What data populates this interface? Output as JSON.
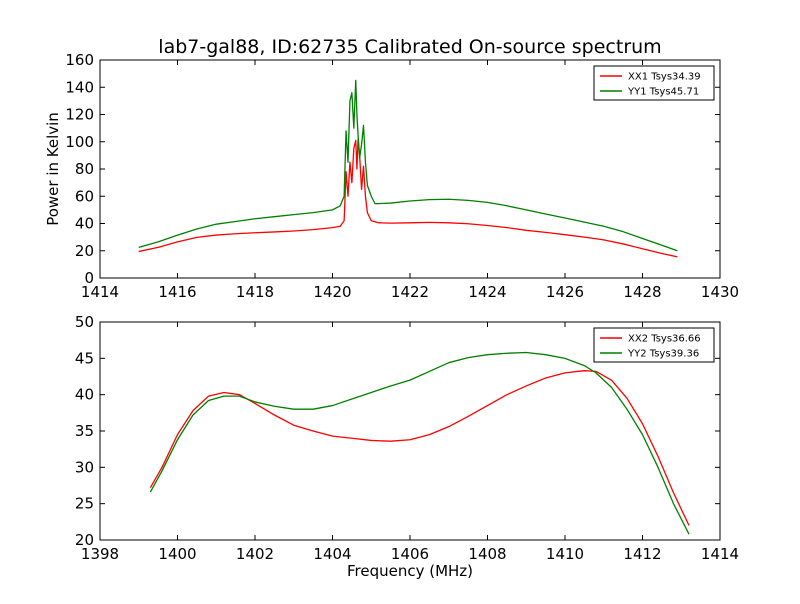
{
  "figure": {
    "title": "lab7-gal88, ID:62735 Calibrated On-source spectrum",
    "xlabel": "Frequency (MHz)",
    "ylabel": "Power in Kelvin"
  },
  "colors": {
    "xx": "#ff0000",
    "yy": "#008000"
  },
  "chart_data": [
    {
      "type": "line",
      "title": "lab7-gal88, ID:62735 Calibrated On-source spectrum",
      "xlabel": "",
      "ylabel": "Power in Kelvin",
      "xlim": [
        1414,
        1430
      ],
      "ylim": [
        0,
        160
      ],
      "xticks": [
        1414,
        1416,
        1418,
        1420,
        1422,
        1424,
        1426,
        1428,
        1430
      ],
      "yticks": [
        0,
        20,
        40,
        60,
        80,
        100,
        120,
        140,
        160
      ],
      "grid": false,
      "legend_position": "top-right",
      "series": [
        {
          "name": "XX1 Tsys34.39",
          "color": "#ff0000",
          "points": [
            [
              1415.0,
              19.5
            ],
            [
              1415.5,
              22.5
            ],
            [
              1416.0,
              26.5
            ],
            [
              1416.5,
              29.8
            ],
            [
              1417.0,
              31.5
            ],
            [
              1417.5,
              32.5
            ],
            [
              1418.0,
              33.2
            ],
            [
              1418.5,
              33.8
            ],
            [
              1419.0,
              34.5
            ],
            [
              1419.5,
              35.5
            ],
            [
              1420.0,
              37.0
            ],
            [
              1420.2,
              38.0
            ],
            [
              1420.3,
              42.0
            ],
            [
              1420.35,
              78.0
            ],
            [
              1420.4,
              60.0
            ],
            [
              1420.45,
              85.0
            ],
            [
              1420.5,
              70.0
            ],
            [
              1420.55,
              95.0
            ],
            [
              1420.6,
              101.0
            ],
            [
              1420.63,
              80.0
            ],
            [
              1420.66,
              102.0
            ],
            [
              1420.7,
              90.0
            ],
            [
              1420.75,
              65.0
            ],
            [
              1420.8,
              82.0
            ],
            [
              1420.85,
              60.0
            ],
            [
              1420.9,
              48.0
            ],
            [
              1421.0,
              42.0
            ],
            [
              1421.2,
              40.5
            ],
            [
              1421.5,
              40.3
            ],
            [
              1422.0,
              40.5
            ],
            [
              1422.5,
              40.8
            ],
            [
              1423.0,
              40.5
            ],
            [
              1423.5,
              39.8
            ],
            [
              1424.0,
              38.5
            ],
            [
              1424.5,
              37.0
            ],
            [
              1425.0,
              35.0
            ],
            [
              1425.5,
              33.5
            ],
            [
              1426.0,
              31.8
            ],
            [
              1426.5,
              30.0
            ],
            [
              1427.0,
              28.0
            ],
            [
              1427.5,
              25.0
            ],
            [
              1428.0,
              21.5
            ],
            [
              1428.5,
              18.0
            ],
            [
              1428.9,
              15.5
            ]
          ]
        },
        {
          "name": "YY1 Tsys45.71",
          "color": "#008000",
          "points": [
            [
              1415.0,
              22.5
            ],
            [
              1415.5,
              26.5
            ],
            [
              1416.0,
              31.5
            ],
            [
              1416.5,
              36.0
            ],
            [
              1417.0,
              39.5
            ],
            [
              1417.5,
              41.5
            ],
            [
              1418.0,
              43.5
            ],
            [
              1418.5,
              45.0
            ],
            [
              1419.0,
              46.5
            ],
            [
              1419.5,
              48.0
            ],
            [
              1420.0,
              50.0
            ],
            [
              1420.2,
              53.0
            ],
            [
              1420.3,
              60.0
            ],
            [
              1420.35,
              108.0
            ],
            [
              1420.4,
              85.0
            ],
            [
              1420.45,
              130.0
            ],
            [
              1420.5,
              136.0
            ],
            [
              1420.55,
              110.0
            ],
            [
              1420.6,
              145.0
            ],
            [
              1420.63,
              120.0
            ],
            [
              1420.66,
              105.0
            ],
            [
              1420.7,
              88.0
            ],
            [
              1420.75,
              98.0
            ],
            [
              1420.8,
              112.0
            ],
            [
              1420.85,
              85.0
            ],
            [
              1420.9,
              68.0
            ],
            [
              1421.0,
              60.0
            ],
            [
              1421.1,
              54.5
            ],
            [
              1421.5,
              55.0
            ],
            [
              1422.0,
              56.5
            ],
            [
              1422.5,
              57.5
            ],
            [
              1423.0,
              57.8
            ],
            [
              1423.5,
              57.0
            ],
            [
              1424.0,
              55.5
            ],
            [
              1424.5,
              53.0
            ],
            [
              1425.0,
              50.0
            ],
            [
              1425.5,
              47.0
            ],
            [
              1426.0,
              44.0
            ],
            [
              1426.5,
              41.0
            ],
            [
              1427.0,
              38.0
            ],
            [
              1427.5,
              34.0
            ],
            [
              1428.0,
              29.0
            ],
            [
              1428.5,
              24.0
            ],
            [
              1428.9,
              20.0
            ]
          ]
        }
      ]
    },
    {
      "type": "line",
      "title": "",
      "xlabel": "Frequency (MHz)",
      "ylabel": "",
      "xlim": [
        1398,
        1414
      ],
      "ylim": [
        20,
        50
      ],
      "xticks": [
        1398,
        1400,
        1402,
        1404,
        1406,
        1408,
        1410,
        1412,
        1414
      ],
      "yticks": [
        20,
        25,
        30,
        35,
        40,
        45,
        50
      ],
      "grid": false,
      "legend_position": "top-right",
      "series": [
        {
          "name": "XX2 Tsys36.66",
          "color": "#ff0000",
          "points": [
            [
              1399.3,
              27.2
            ],
            [
              1399.6,
              30.0
            ],
            [
              1400.0,
              34.5
            ],
            [
              1400.4,
              37.8
            ],
            [
              1400.8,
              39.8
            ],
            [
              1401.2,
              40.3
            ],
            [
              1401.6,
              40.0
            ],
            [
              1402.0,
              38.8
            ],
            [
              1402.5,
              37.2
            ],
            [
              1403.0,
              35.8
            ],
            [
              1403.5,
              35.0
            ],
            [
              1404.0,
              34.3
            ],
            [
              1404.5,
              34.0
            ],
            [
              1405.0,
              33.7
            ],
            [
              1405.5,
              33.6
            ],
            [
              1406.0,
              33.8
            ],
            [
              1406.5,
              34.5
            ],
            [
              1407.0,
              35.6
            ],
            [
              1407.5,
              37.0
            ],
            [
              1408.0,
              38.5
            ],
            [
              1408.5,
              40.0
            ],
            [
              1409.0,
              41.2
            ],
            [
              1409.5,
              42.3
            ],
            [
              1410.0,
              43.0
            ],
            [
              1410.5,
              43.3
            ],
            [
              1410.8,
              43.2
            ],
            [
              1411.2,
              42.0
            ],
            [
              1411.6,
              39.5
            ],
            [
              1412.0,
              36.0
            ],
            [
              1412.4,
              31.5
            ],
            [
              1412.8,
              26.5
            ],
            [
              1413.2,
              22.0
            ]
          ]
        },
        {
          "name": "YY2 Tsys39.36",
          "color": "#008000",
          "points": [
            [
              1399.3,
              26.6
            ],
            [
              1399.6,
              29.5
            ],
            [
              1400.0,
              33.8
            ],
            [
              1400.4,
              37.2
            ],
            [
              1400.8,
              39.2
            ],
            [
              1401.2,
              39.8
            ],
            [
              1401.6,
              39.8
            ],
            [
              1402.0,
              39.0
            ],
            [
              1402.5,
              38.4
            ],
            [
              1403.0,
              38.0
            ],
            [
              1403.5,
              38.0
            ],
            [
              1404.0,
              38.5
            ],
            [
              1404.5,
              39.4
            ],
            [
              1405.0,
              40.3
            ],
            [
              1405.5,
              41.2
            ],
            [
              1406.0,
              42.0
            ],
            [
              1406.5,
              43.2
            ],
            [
              1407.0,
              44.4
            ],
            [
              1407.5,
              45.1
            ],
            [
              1408.0,
              45.5
            ],
            [
              1408.5,
              45.7
            ],
            [
              1409.0,
              45.8
            ],
            [
              1409.5,
              45.5
            ],
            [
              1410.0,
              45.0
            ],
            [
              1410.5,
              44.0
            ],
            [
              1410.8,
              43.0
            ],
            [
              1411.2,
              41.0
            ],
            [
              1411.6,
              38.0
            ],
            [
              1412.0,
              34.5
            ],
            [
              1412.4,
              30.0
            ],
            [
              1412.8,
              25.0
            ],
            [
              1413.2,
              20.8
            ]
          ]
        }
      ]
    }
  ]
}
